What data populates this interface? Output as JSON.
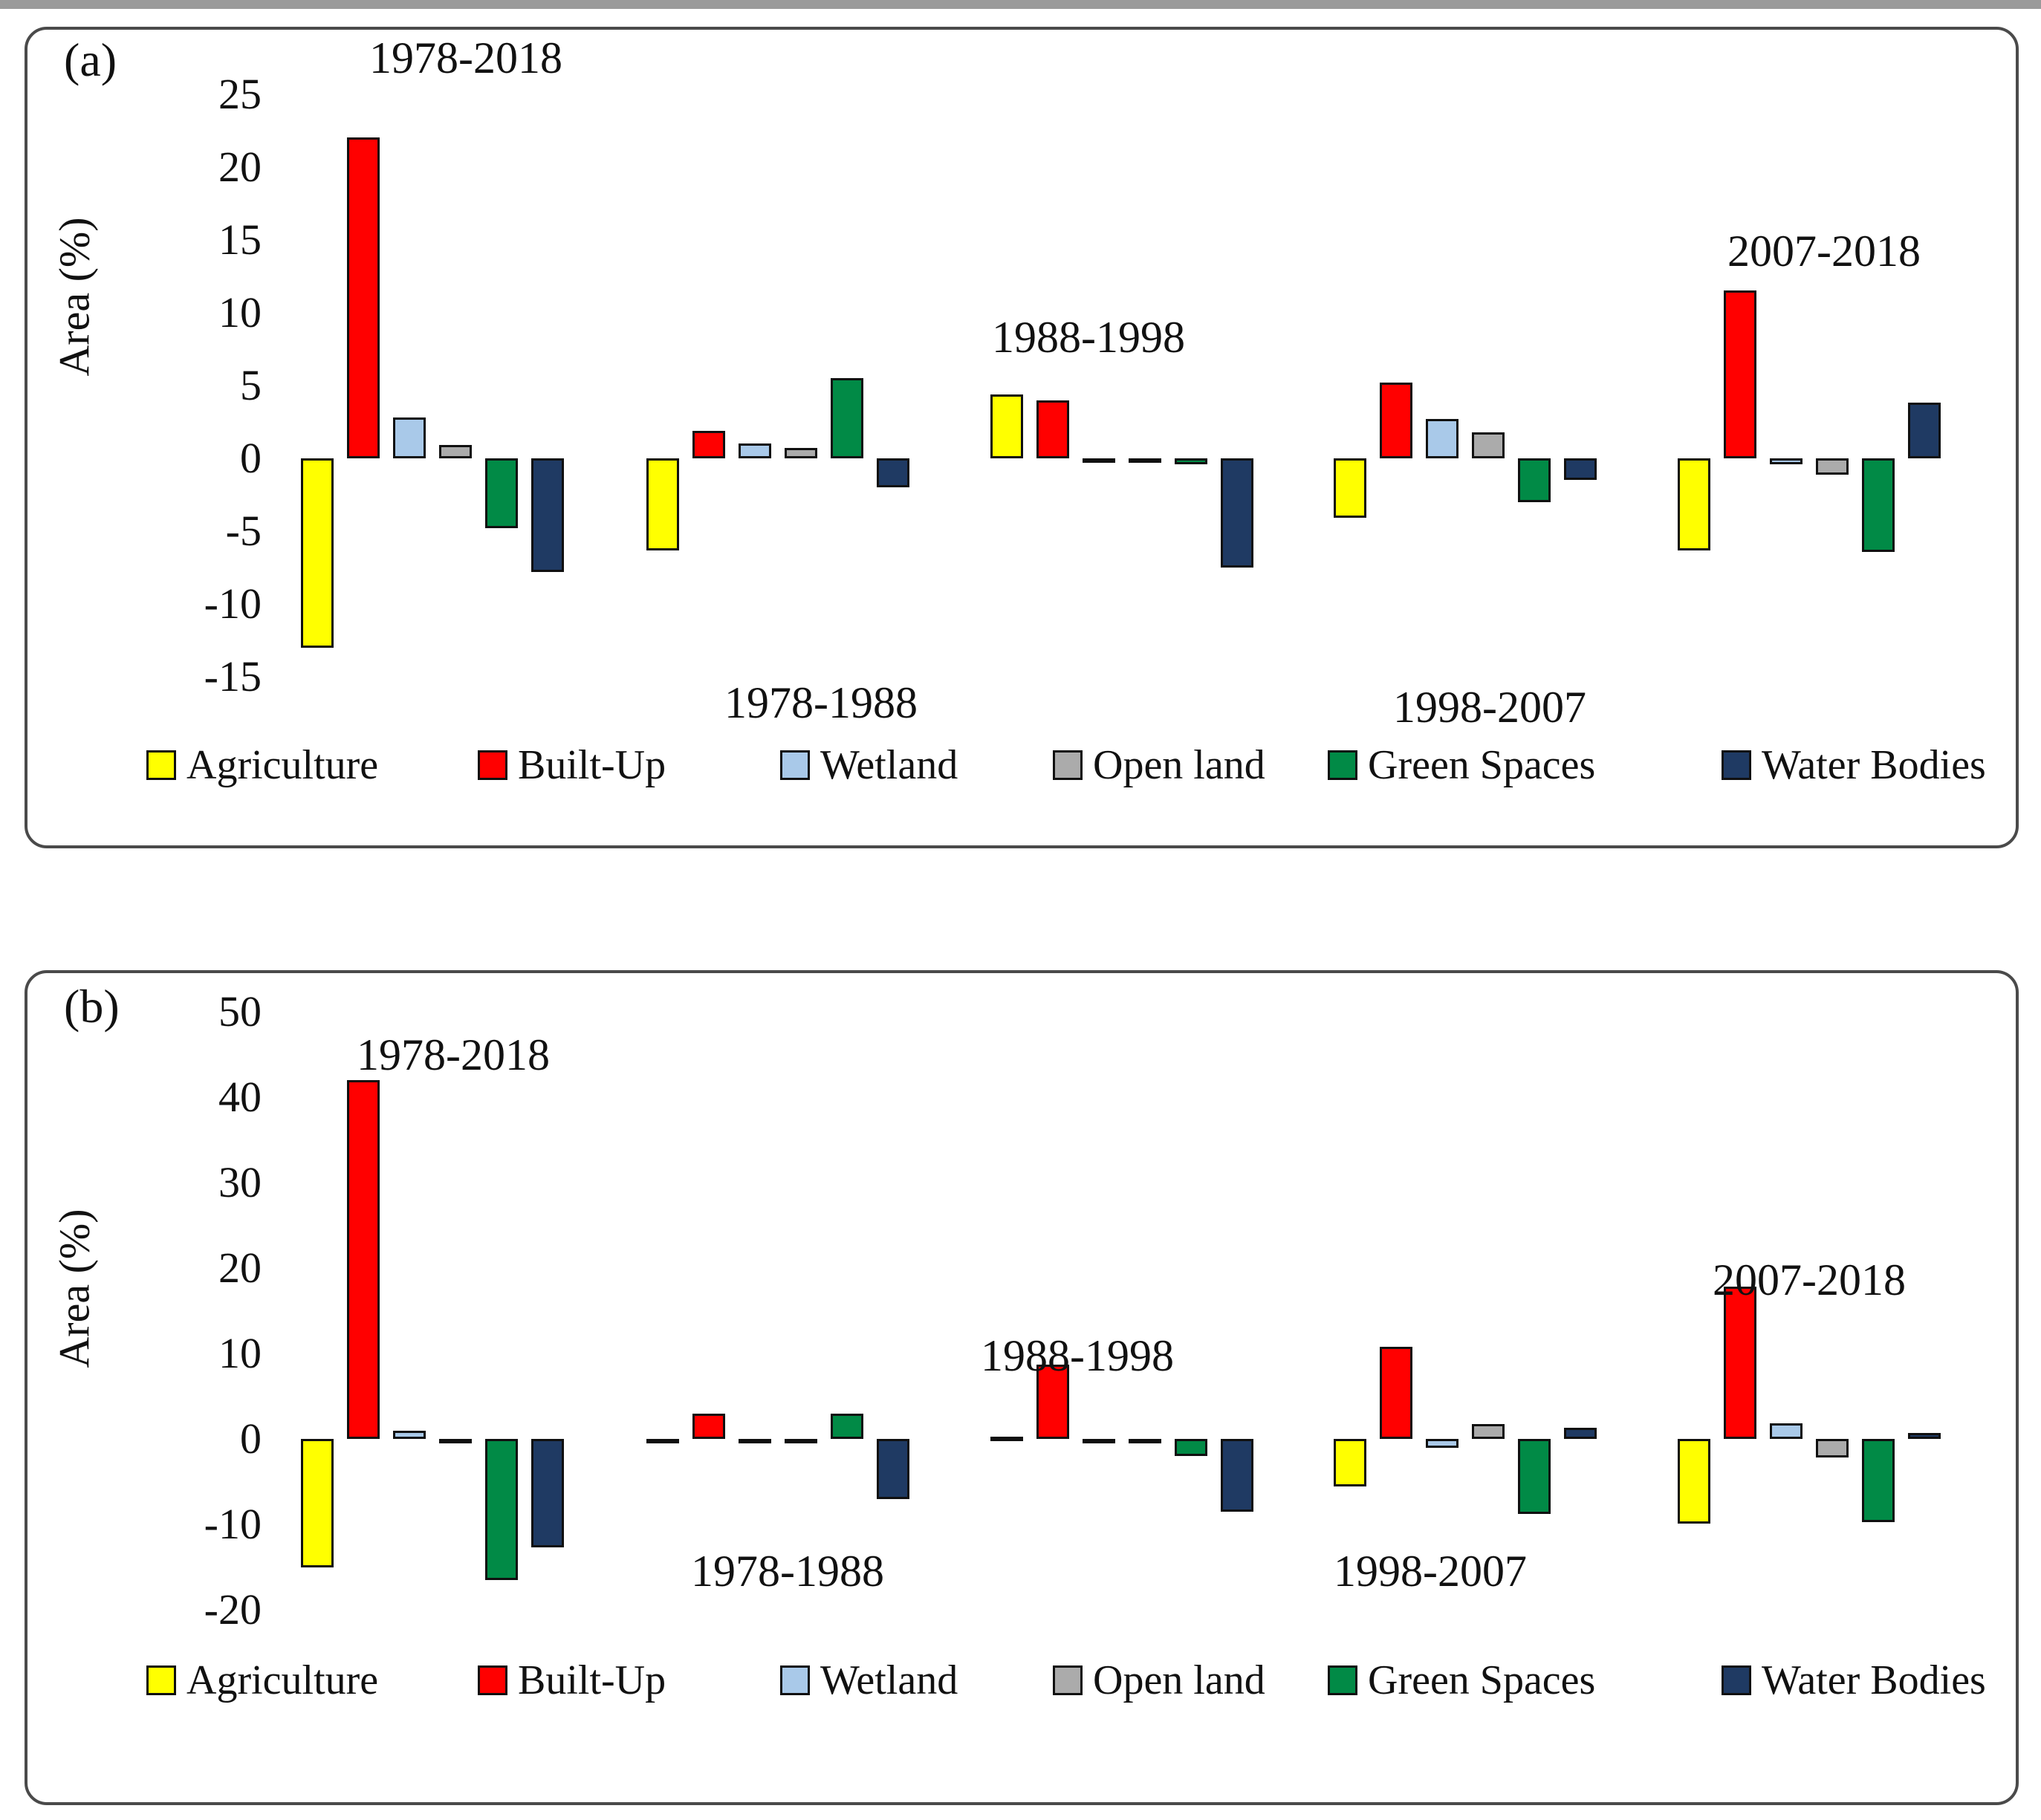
{
  "chart_data": [
    {
      "type": "bar",
      "panel_letter": "(a)",
      "ylabel": "Area  (%)",
      "ylim": [
        -15,
        25
      ],
      "yticks": [
        25,
        20,
        15,
        10,
        5,
        0,
        -5,
        -10,
        -15
      ],
      "grid": false,
      "legend_position": "bottom",
      "categories": [
        "1978-2018",
        "1978-1988",
        "1988-1998",
        "1998-2007",
        "2007-2018"
      ],
      "series": [
        {
          "name": "Agriculture",
          "color": "#FFFF00",
          "values": [
            -13.0,
            -6.3,
            4.4,
            -4.1,
            -6.3
          ]
        },
        {
          "name": "Built-Up",
          "color": "#FF0000",
          "values": [
            22.0,
            1.9,
            4.0,
            5.2,
            11.5
          ]
        },
        {
          "name": "Wetland",
          "color": "#A9C9E9",
          "values": [
            2.8,
            1.0,
            -0.2,
            2.7,
            -0.4
          ]
        },
        {
          "name": "Open land",
          "color": "#ABABAB",
          "values": [
            0.9,
            0.7,
            -0.2,
            1.8,
            -1.1
          ]
        },
        {
          "name": "Green Spaces",
          "color": "#018A46",
          "values": [
            -4.8,
            5.5,
            -0.4,
            -3.0,
            -6.4
          ]
        },
        {
          "name": "Water Bodies",
          "color": "#1F3A63",
          "values": [
            -7.8,
            -2.0,
            -7.5,
            -1.5,
            3.8
          ]
        }
      ]
    },
    {
      "type": "bar",
      "panel_letter": "(b)",
      "ylabel": "Area  (%)",
      "ylim": [
        -20,
        50
      ],
      "yticks": [
        50,
        40,
        30,
        20,
        10,
        0,
        -10,
        -20
      ],
      "grid": false,
      "legend_position": "bottom",
      "categories": [
        "1978-2018",
        "1978-1988",
        "1988-1998",
        "1998-2007",
        "2007-2018"
      ],
      "series": [
        {
          "name": "Agriculture",
          "color": "#FFFF00",
          "values": [
            -15.0,
            -0.3,
            0.3,
            -5.6,
            -9.9
          ]
        },
        {
          "name": "Built-Up",
          "color": "#FF0000",
          "values": [
            42.0,
            3.0,
            8.7,
            10.8,
            17.8
          ]
        },
        {
          "name": "Wetland",
          "color": "#A9C9E9",
          "values": [
            1.0,
            -0.3,
            -0.2,
            -1.0,
            1.8
          ]
        },
        {
          "name": "Open land",
          "color": "#ABABAB",
          "values": [
            -0.4,
            -0.4,
            -0.3,
            1.7,
            -2.2
          ]
        },
        {
          "name": "Green Spaces",
          "color": "#018A46",
          "values": [
            -16.5,
            3.0,
            -2.0,
            -8.8,
            -9.7
          ]
        },
        {
          "name": "Water Bodies",
          "color": "#1F3A63",
          "values": [
            -12.7,
            -7.0,
            -8.5,
            1.3,
            0.7
          ]
        }
      ]
    }
  ]
}
